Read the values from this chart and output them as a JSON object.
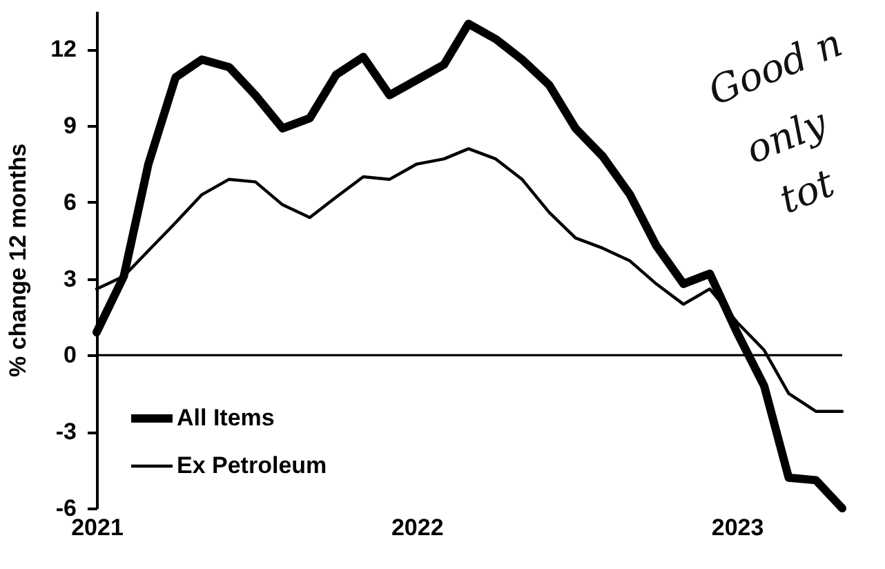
{
  "chart_data": {
    "type": "line",
    "ylabel": "% change 12 months",
    "x": [
      "2021-01",
      "2021-02",
      "2021-03",
      "2021-04",
      "2021-05",
      "2021-06",
      "2021-07",
      "2021-08",
      "2021-09",
      "2021-10",
      "2021-11",
      "2021-12",
      "2022-01",
      "2022-02",
      "2022-03",
      "2022-04",
      "2022-05",
      "2022-06",
      "2022-07",
      "2022-08",
      "2022-09",
      "2022-10",
      "2022-11",
      "2022-12",
      "2023-01",
      "2023-02",
      "2023-03",
      "2023-04",
      "2023-05"
    ],
    "series": [
      {
        "name": "All Items",
        "color": "#000000",
        "values": [
          0.9,
          3.1,
          7.5,
          10.9,
          11.6,
          11.3,
          10.2,
          8.9,
          9.3,
          11.0,
          11.7,
          10.2,
          10.8,
          11.4,
          13.0,
          12.4,
          11.6,
          10.6,
          8.9,
          7.8,
          6.3,
          4.3,
          2.8,
          3.2,
          0.9,
          -1.2,
          -4.8,
          -4.9,
          -6.0
        ]
      },
      {
        "name": "Ex Petroleum",
        "color": "#000000",
        "values": [
          2.6,
          3.1,
          4.1,
          5.2,
          6.3,
          6.9,
          6.8,
          5.9,
          5.4,
          6.2,
          7.0,
          6.9,
          7.5,
          7.7,
          8.1,
          7.7,
          6.9,
          5.6,
          4.6,
          4.2,
          3.7,
          2.8,
          2.0,
          2.6,
          1.3,
          0.2,
          -1.5,
          -2.2,
          -2.2
        ]
      }
    ],
    "xlim": [
      "2021-01",
      "2023-05"
    ],
    "xticks": [
      "2021",
      "2022",
      "2023"
    ],
    "ylim": [
      -6,
      13.5
    ],
    "yticks": [
      -6,
      -3,
      0,
      3,
      6,
      9,
      12
    ],
    "ref_lines": [
      {
        "axis": "y",
        "value": 0
      }
    ],
    "legend": "bottom left",
    "grid": false,
    "annotations": [
      "Good n",
      "only",
      "tot"
    ]
  }
}
